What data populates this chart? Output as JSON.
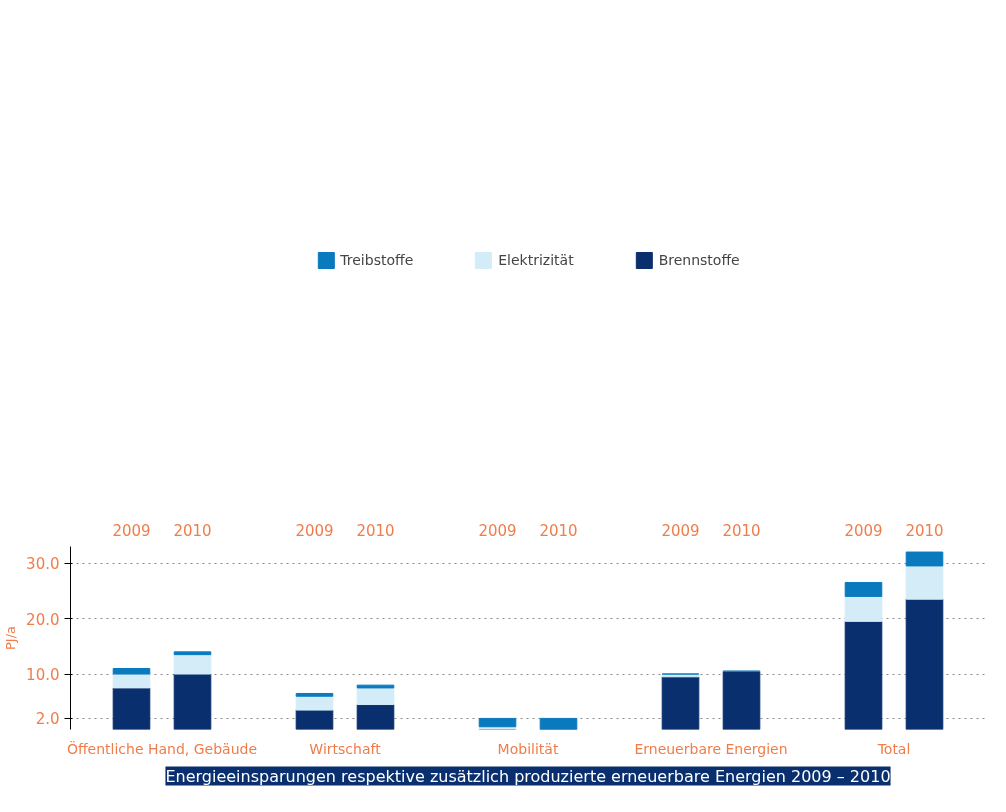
{
  "chart_data": {
    "type": "bar",
    "stacked": true,
    "title": "Energieeinsparungen respektive zusätzlich produzierte erneuerbare Energien 2009 – 2010",
    "ylabel": "PJ/a",
    "categories": [
      "2009",
      "2010",
      "2009",
      "2010",
      "2009",
      "2010",
      "2009",
      "2010",
      "2009",
      "2010"
    ],
    "annotations": [
      "Öffentliche Hand, Gebäude",
      "Wirtschaft",
      "Mobilität",
      "Erneuerbare Energien",
      "Total"
    ],
    "series": [
      {
        "name": "Brennstoffe",
        "color": "#0a2f6e",
        "values": [
          7.5,
          10,
          3.5,
          4.5,
          0,
          0,
          9.5,
          10.5,
          19.5,
          23.5
        ]
      },
      {
        "name": "Elektrizität",
        "color": "#d3ecf8",
        "values": [
          2.5,
          3.5,
          2.5,
          3,
          0.5,
          0,
          0.5,
          0,
          4.5,
          6
        ]
      },
      {
        "name": "Treibstoffe",
        "color": "#0a7abf",
        "values": [
          1,
          0.5,
          0.5,
          0.5,
          1.5,
          2,
          0,
          0,
          2.5,
          2.5
        ]
      }
    ],
    "ylim": [
      0,
      33
    ],
    "yticks": [
      {
        "value": 2,
        "label": "2.0"
      },
      {
        "value": 10,
        "label": "10.0"
      },
      {
        "value": 20,
        "label": "20.0"
      },
      {
        "value": 30,
        "label": "30.0"
      }
    ],
    "grid": "y",
    "legend": "top"
  }
}
